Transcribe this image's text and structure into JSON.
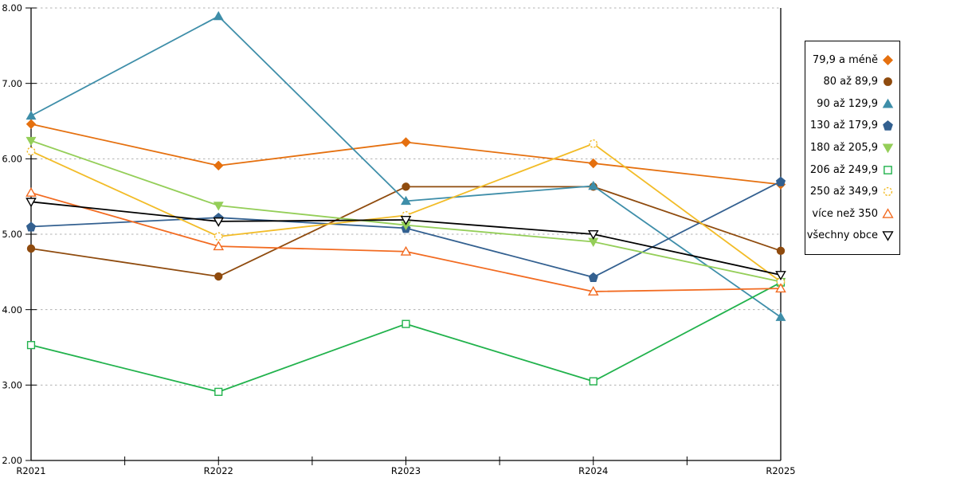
{
  "page": {
    "background": "#FFFFFF"
  },
  "chart_data": {
    "type": "line",
    "title": "",
    "categories": [
      "R2021",
      "R2022",
      "R2023",
      "R2024",
      "R2025"
    ],
    "y_axis": {
      "min": 2,
      "max": 8,
      "tick_interval": 1,
      "tick_labels": [
        "8.00",
        "7.00",
        "6.00",
        "5.00",
        "4.00",
        "3.00",
        "2.00"
      ],
      "tick_values": [
        8,
        7,
        6,
        5,
        4,
        3,
        2
      ]
    },
    "grid": {
      "horizontal_dashed": true,
      "gridline_values": [
        3,
        4,
        5,
        6,
        7,
        8
      ],
      "color": "#B0B0B0"
    },
    "legend_position": "right",
    "axis_color": "#000000",
    "series": [
      {
        "name": "79,9 a méně",
        "marker": "diamond",
        "marker_fill": "solid",
        "color": "#E5700F",
        "values": [
          6.46,
          5.91,
          6.22,
          5.94,
          5.66
        ]
      },
      {
        "name": "80 až 89,9",
        "marker": "circle",
        "marker_fill": "solid",
        "color": "#8F4B0E",
        "values": [
          4.81,
          4.44,
          5.63,
          5.63,
          4.78
        ]
      },
      {
        "name": "90 až 129,9",
        "marker": "triangle-up",
        "marker_fill": "solid",
        "color": "#3E8EA9",
        "values": [
          6.57,
          7.89,
          5.44,
          5.64,
          3.9
        ]
      },
      {
        "name": "130 až 179,9",
        "marker": "pentagon",
        "marker_fill": "solid",
        "color": "#336090",
        "values": [
          5.1,
          5.22,
          5.08,
          4.43,
          5.7
        ]
      },
      {
        "name": "180 až 205,9",
        "marker": "triangle-down",
        "marker_fill": "solid",
        "color": "#94CE58",
        "values": [
          6.24,
          5.38,
          5.12,
          4.9,
          4.37
        ]
      },
      {
        "name": "206 až 249,9",
        "marker": "square",
        "marker_fill": "open",
        "color": "#21B24C",
        "values": [
          3.53,
          2.91,
          3.81,
          3.05,
          4.36
        ]
      },
      {
        "name": "250 až 349,9",
        "marker": "circle-dashed",
        "marker_fill": "open",
        "color": "#F2BC28",
        "values": [
          6.1,
          4.97,
          5.25,
          6.2,
          4.37
        ]
      },
      {
        "name": "více než 350",
        "marker": "triangle-up",
        "marker_fill": "open",
        "color": "#F26B21",
        "values": [
          5.55,
          4.84,
          4.77,
          4.24,
          4.28
        ]
      },
      {
        "name": "všechny obce",
        "marker": "triangle-down",
        "marker_fill": "open",
        "color": "#000000",
        "values": [
          5.43,
          5.17,
          5.19,
          5.0,
          4.46
        ]
      }
    ]
  }
}
